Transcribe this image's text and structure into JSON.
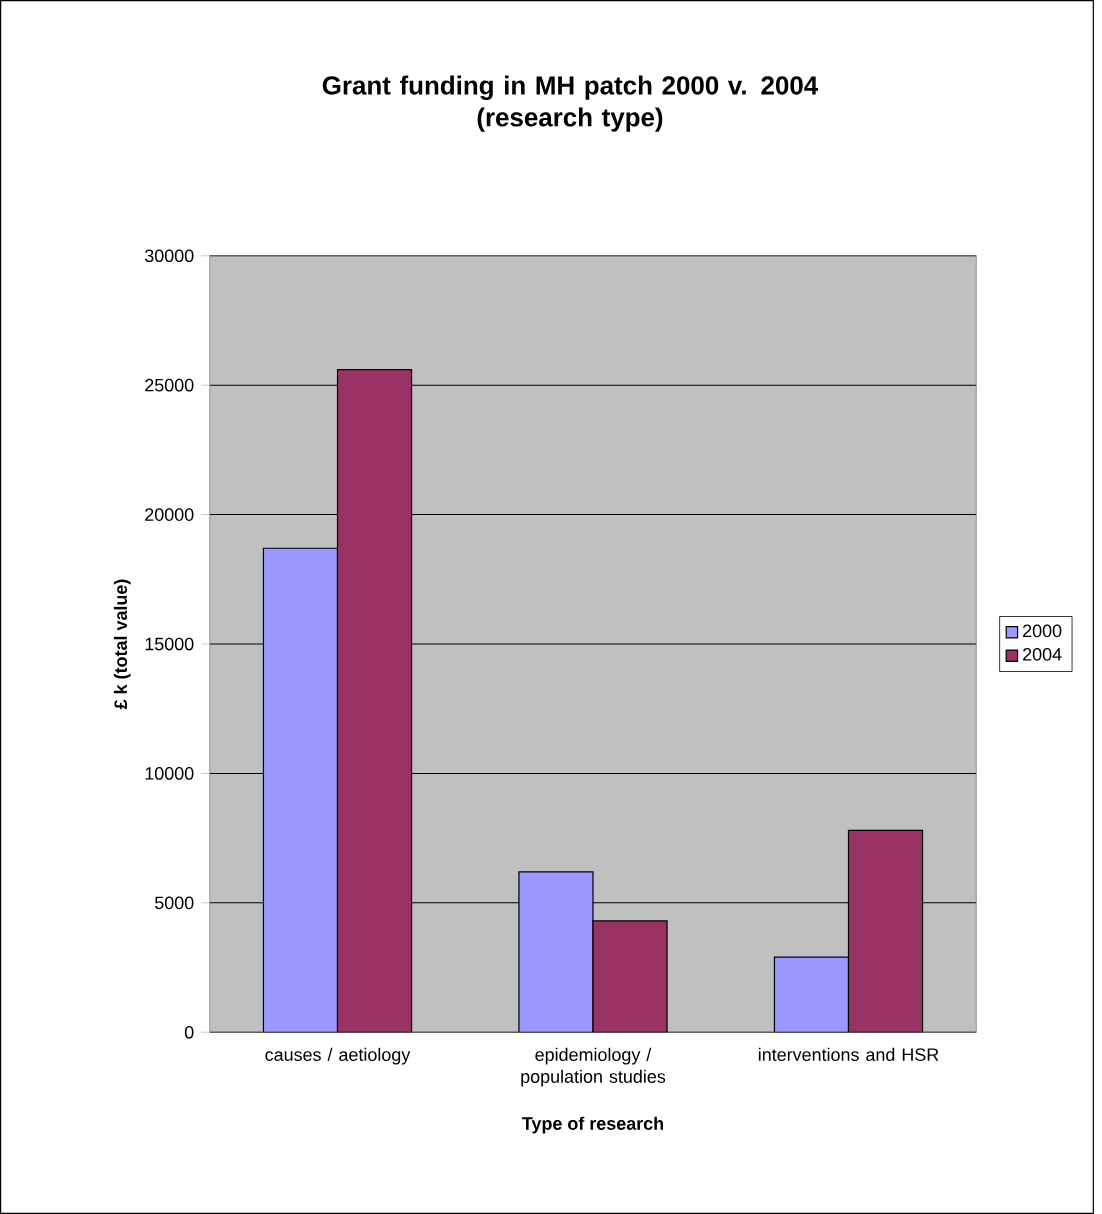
{
  "chart_data": {
    "type": "bar",
    "title": "Grant funding in MH patch 2000 v. 2004\n(research type)",
    "xlabel": "Type of research",
    "ylabel": "£ k (total value)",
    "categories": [
      "causes / aetiology",
      "epidemiology / population studies",
      "interventions and HSR"
    ],
    "series": [
      {
        "name": "2000",
        "color": "#9999ff",
        "values": [
          18700,
          6200,
          2900
        ]
      },
      {
        "name": "2004",
        "color": "#993366",
        "values": [
          25600,
          4300,
          7800
        ]
      }
    ],
    "ylim": [
      0,
      30000
    ],
    "yticks": [
      0,
      5000,
      10000,
      15000,
      20000,
      25000,
      30000
    ],
    "grid": "y",
    "legend": "right"
  }
}
